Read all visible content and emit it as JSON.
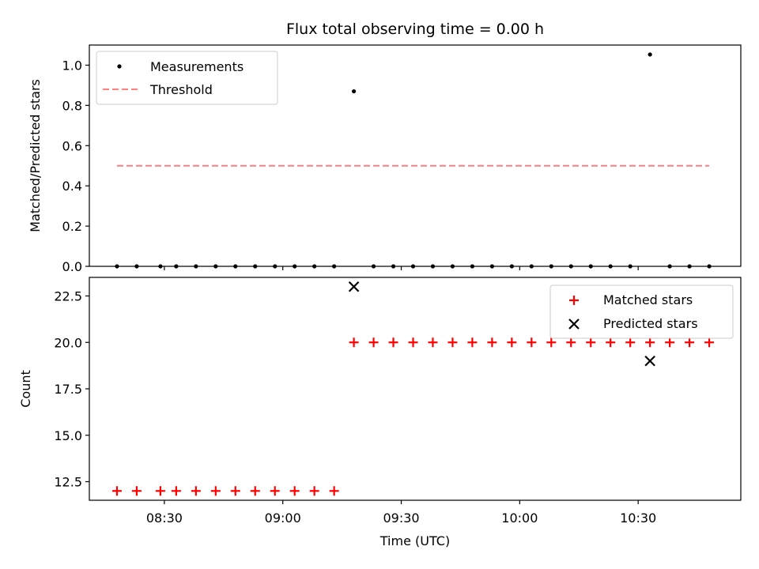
{
  "chart_data": [
    {
      "type": "scatter",
      "title": "Flux total observing time = 0.00 h",
      "xlabel": "",
      "ylabel": "Matched/Predicted stars",
      "xlim": [
        "08:11",
        "10:56"
      ],
      "ylim": [
        0,
        1.1
      ],
      "yticks": [
        "0.0",
        "0.2",
        "0.4",
        "0.6",
        "0.8",
        "1.0"
      ],
      "legend_position": "top-left",
      "series": [
        {
          "name": "Measurements",
          "kind": "points",
          "color": "#000000",
          "x": [
            "08:18",
            "08:23",
            "08:29",
            "08:33",
            "08:38",
            "08:43",
            "08:48",
            "08:53",
            "08:58",
            "09:03",
            "09:08",
            "09:13",
            "09:18",
            "09:23",
            "09:28",
            "09:33",
            "09:38",
            "09:43",
            "09:48",
            "09:53",
            "09:58",
            "10:03",
            "10:08",
            "10:13",
            "10:18",
            "10:23",
            "10:28",
            "10:33",
            "10:38",
            "10:43",
            "10:48"
          ],
          "y": [
            0,
            0,
            0,
            0,
            0,
            0,
            0,
            0,
            0,
            0,
            0,
            0,
            0.87,
            0,
            0,
            0,
            0,
            0,
            0,
            0,
            0,
            0,
            0,
            0,
            0,
            0,
            0,
            1.053,
            0,
            0,
            0
          ]
        },
        {
          "name": "Threshold",
          "kind": "dashed-line",
          "color": "#ff7f7f",
          "x": [
            "08:18",
            "10:48"
          ],
          "y": [
            0.5,
            0.5
          ]
        }
      ]
    },
    {
      "type": "scatter",
      "title": "",
      "xlabel": "Time (UTC)",
      "ylabel": "Count",
      "xlim": [
        "08:11",
        "10:56"
      ],
      "ylim": [
        11.5,
        23.5
      ],
      "xticks": [
        "08:30",
        "09:00",
        "09:30",
        "10:00",
        "10:30"
      ],
      "yticks": [
        "12.5",
        "15.0",
        "17.5",
        "20.0",
        "22.5"
      ],
      "legend_position": "top-right",
      "series": [
        {
          "name": "Matched stars",
          "marker": "plus",
          "color": "#ff0000",
          "x": [
            "08:18",
            "08:23",
            "08:29",
            "08:33",
            "08:38",
            "08:43",
            "08:48",
            "08:53",
            "08:58",
            "09:03",
            "09:08",
            "09:13",
            "09:18",
            "09:23",
            "09:28",
            "09:33",
            "09:38",
            "09:43",
            "09:48",
            "09:53",
            "09:58",
            "10:03",
            "10:08",
            "10:13",
            "10:18",
            "10:23",
            "10:28",
            "10:33",
            "10:38",
            "10:43",
            "10:48"
          ],
          "y": [
            12,
            12,
            12,
            12,
            12,
            12,
            12,
            12,
            12,
            12,
            12,
            12,
            20,
            20,
            20,
            20,
            20,
            20,
            20,
            20,
            20,
            20,
            20,
            20,
            20,
            20,
            20,
            20,
            20,
            20,
            20
          ]
        },
        {
          "name": "Predicted stars",
          "marker": "x",
          "color": "#000000",
          "x": [
            "09:18",
            "10:33"
          ],
          "y": [
            23,
            19
          ]
        }
      ]
    }
  ]
}
